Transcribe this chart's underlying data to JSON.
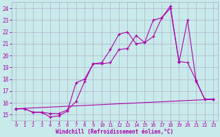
{
  "bg_color": "#c8eaea",
  "grid_color": "#b0b0cc",
  "line_color": "#aa00aa",
  "xlim": [
    -0.5,
    23.5
  ],
  "ylim": [
    14.5,
    24.5
  ],
  "xticks": [
    0,
    1,
    2,
    3,
    4,
    5,
    6,
    7,
    8,
    9,
    10,
    11,
    12,
    13,
    14,
    15,
    16,
    17,
    18,
    19,
    20,
    21,
    22,
    23
  ],
  "yticks": [
    15,
    16,
    17,
    18,
    19,
    20,
    21,
    22,
    23,
    24
  ],
  "xlabel": "Windchill (Refroidissement éolien,°C)",
  "series": [
    {
      "x": [
        0,
        1,
        2,
        3,
        4,
        5,
        6,
        7,
        8,
        9,
        10,
        11,
        12,
        13,
        14,
        15,
        16,
        17,
        18,
        19,
        20,
        21,
        22,
        23
      ],
      "y": [
        15.5,
        15.5,
        15.2,
        15.2,
        14.8,
        14.9,
        15.3,
        17.7,
        18.0,
        19.3,
        19.3,
        19.4,
        20.5,
        20.6,
        21.7,
        21.1,
        21.6,
        23.2,
        24.2,
        19.4,
        23.0,
        17.8,
        16.3,
        16.3
      ]
    },
    {
      "x": [
        0,
        1,
        2,
        3,
        4,
        5,
        6,
        7,
        8,
        9,
        10,
        11,
        12,
        13,
        14,
        15,
        16,
        17,
        18,
        19,
        20,
        21,
        22,
        23
      ],
      "y": [
        15.5,
        15.5,
        15.2,
        15.2,
        15.1,
        15.1,
        15.4,
        16.1,
        17.8,
        19.3,
        19.4,
        20.5,
        21.8,
        22.0,
        21.0,
        21.1,
        23.0,
        23.2,
        24.0,
        19.5,
        19.4,
        17.9,
        16.3,
        16.3
      ]
    },
    {
      "x": [
        0,
        23
      ],
      "y": [
        15.5,
        16.3
      ]
    }
  ]
}
